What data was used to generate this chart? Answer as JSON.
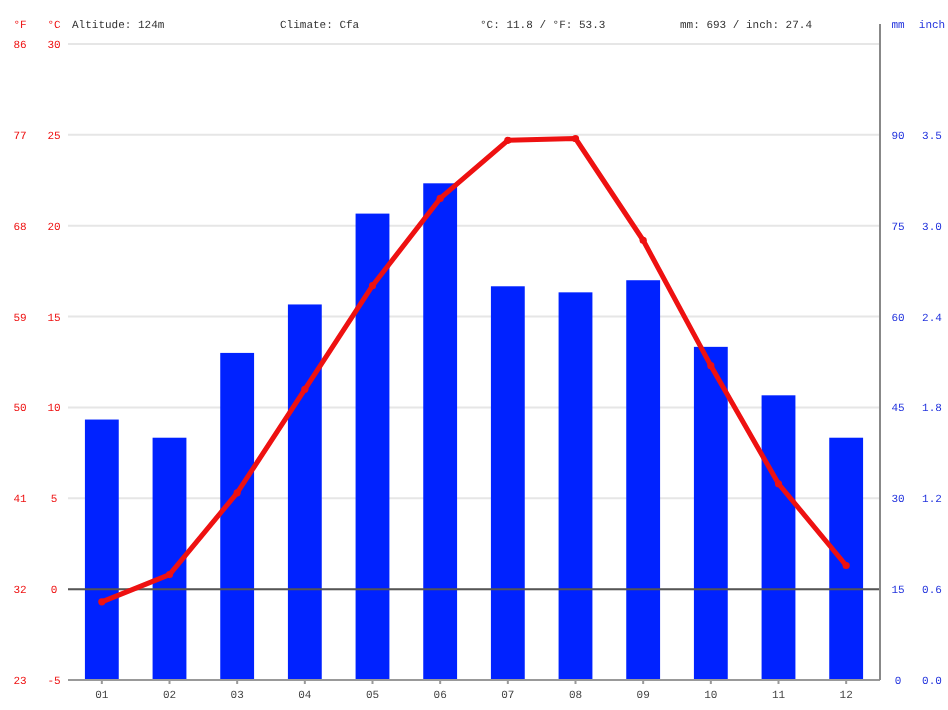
{
  "chart_data": {
    "type": "bar",
    "categories": [
      "01",
      "02",
      "03",
      "04",
      "05",
      "06",
      "07",
      "08",
      "09",
      "10",
      "11",
      "12"
    ],
    "series": [
      {
        "axis": "y2",
        "color": "#0022ff",
        "values": [
          43,
          40,
          54,
          62,
          77,
          82,
          65,
          64,
          66,
          55,
          47,
          40
        ]
      },
      {
        "type": "line",
        "axis": "y",
        "color": "#ee1111",
        "values": [
          -0.7,
          0.8,
          5.3,
          11.0,
          16.7,
          21.5,
          24.7,
          24.8,
          19.2,
          12.3,
          5.8,
          1.3
        ]
      }
    ],
    "ylabel": "°C",
    "y3label": "°F",
    "y2label": "mm",
    "ylim": [
      -5,
      30
    ],
    "yticks": [
      -5,
      0,
      5,
      10,
      15,
      20,
      25,
      30
    ],
    "y3lim": [
      23,
      86
    ],
    "y3ticks": [
      23,
      32,
      41,
      50,
      59,
      68,
      77,
      86
    ],
    "y2lim": [
      0,
      105
    ],
    "y2ticks": [
      0,
      15,
      30,
      45,
      60,
      75,
      90
    ],
    "grid": "y",
    "marker": "circle",
    "line_style": "solid",
    "ref_lines": [
      {
        "axis": "y",
        "value": 0,
        "color": "#555555"
      }
    ],
    "annotations": [
      "Altitude: 124m",
      "Climate: Cfa",
      "°C: 11.8 / °F: 53.3",
      "mm: 693 / inch: 27.4",
      "inch",
      "0.0",
      "0.6",
      "1.2",
      "1.8",
      "2.4",
      "3.0",
      "3.5"
    ]
  }
}
